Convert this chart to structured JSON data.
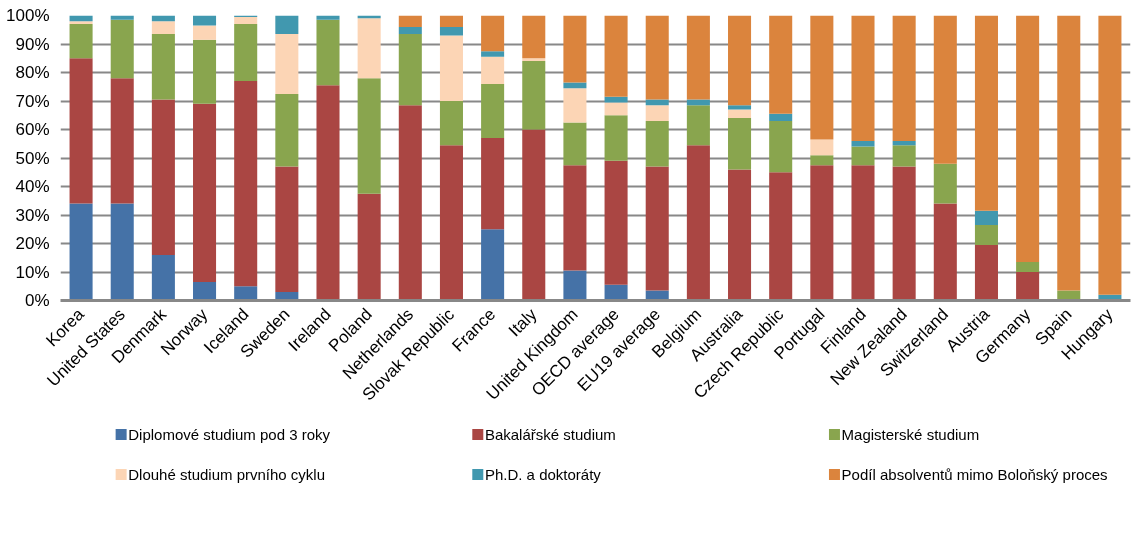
{
  "chart_data": {
    "type": "bar",
    "stacked": true,
    "grid": "y",
    "legend": "bottom",
    "categories": [
      "Korea",
      "United States",
      "Denmark",
      "Norway",
      "Iceland",
      "Sweden",
      "Ireland",
      "Poland",
      "Netherlands",
      "Slovak Republic",
      "France",
      "Italy",
      "United Kingdom",
      "OECD average",
      "EU19 average",
      "Belgium",
      "Australia",
      "Czech Republic",
      "Portugal",
      "Finland",
      "New Zealand",
      "Switzerland",
      "Austria",
      "Germany",
      "Spain",
      "Hungary"
    ],
    "ylim": [
      0,
      100
    ],
    "yticks": [
      {
        "value": 0,
        "label": "0%"
      },
      {
        "value": 10,
        "label": "10%"
      },
      {
        "value": 20,
        "label": "20%"
      },
      {
        "value": 30,
        "label": "30%"
      },
      {
        "value": 40,
        "label": "40%"
      },
      {
        "value": 50,
        "label": "50%"
      },
      {
        "value": 60,
        "label": "60%"
      },
      {
        "value": 70,
        "label": "70%"
      },
      {
        "value": 80,
        "label": "80%"
      },
      {
        "value": 90,
        "label": "90%"
      },
      {
        "value": 100,
        "label": "100%"
      }
    ],
    "series": [
      {
        "name": "Diplomové studium pod 3 roky",
        "color": "#4572a7",
        "values": [
          34,
          34,
          16,
          6.5,
          5,
          3,
          0,
          0,
          0,
          0,
          25,
          0.5,
          10.5,
          5.5,
          3.5,
          0,
          0,
          0,
          0,
          0,
          0,
          0,
          0,
          0,
          0,
          0
        ]
      },
      {
        "name": "Bakalářské  studium",
        "color": "#aa4643",
        "values": [
          51,
          44,
          54.5,
          62.5,
          72,
          44,
          75.5,
          37.5,
          68.5,
          54.5,
          32,
          59.5,
          37,
          43.5,
          43.5,
          54.5,
          46,
          45,
          47.5,
          47.5,
          47,
          34,
          19.5,
          10,
          0,
          0.5
        ]
      },
      {
        "name": "Magisterské studium",
        "color": "#89a54e",
        "values": [
          12,
          20.5,
          23,
          22.5,
          20,
          25.5,
          23,
          40.5,
          25,
          15.5,
          19,
          24,
          15,
          16,
          16,
          14,
          18,
          18,
          3.5,
          6.5,
          7.5,
          14,
          7,
          3.5,
          3.5,
          0
        ]
      },
      {
        "name": "Dlouhé studium prvního cyklu",
        "color": "#fcd5b5",
        "values": [
          1,
          0,
          4.5,
          5,
          2.5,
          21,
          0,
          21,
          0,
          23,
          9.5,
          1,
          12,
          4.5,
          5.5,
          0,
          3,
          0,
          5.5,
          0,
          0,
          0,
          0,
          0,
          0,
          0
        ]
      },
      {
        "name": "Ph.D. a doktoráty",
        "color": "#4198af",
        "values": [
          2,
          1.5,
          2,
          3.5,
          0.5,
          6.5,
          1.5,
          1,
          2.5,
          3,
          2,
          0,
          2,
          2,
          2,
          2,
          1.5,
          2.5,
          0,
          2,
          1.5,
          0,
          5,
          0,
          0,
          1.5
        ]
      },
      {
        "name": "Podíl absolventů mimo Boloňský proces",
        "color": "#db843d",
        "values": [
          0,
          0,
          0,
          0,
          0,
          0,
          0,
          0,
          4,
          4,
          12.5,
          15,
          23.5,
          28.5,
          29.5,
          29.5,
          31.5,
          34.5,
          43.5,
          44,
          44,
          52,
          68.5,
          86.5,
          96.5,
          98
        ]
      }
    ]
  }
}
